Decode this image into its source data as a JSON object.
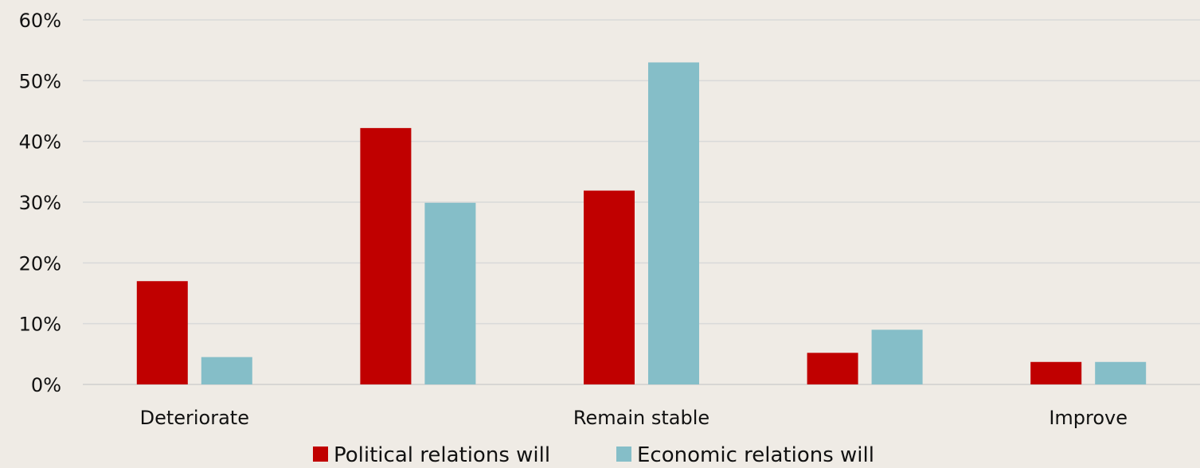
{
  "chart_data": {
    "type": "bar",
    "categories": [
      "Deteriorate",
      "",
      "Remain stable",
      "",
      "Improve"
    ],
    "series": [
      {
        "name": "Political relations will",
        "values": [
          17,
          42.2,
          31.9,
          5.2,
          3.7
        ],
        "color": "#c00000"
      },
      {
        "name": "Economic relations will",
        "values": [
          4.5,
          29.9,
          53,
          9,
          3.7
        ],
        "color": "#85bec8"
      }
    ],
    "y_ticks": [
      "0%",
      "10%",
      "20%",
      "30%",
      "40%",
      "50%",
      "60%"
    ],
    "ylim": [
      0,
      60
    ],
    "grid": true,
    "gridline_color": "#d9d9d9",
    "legend_position": "bottom"
  }
}
